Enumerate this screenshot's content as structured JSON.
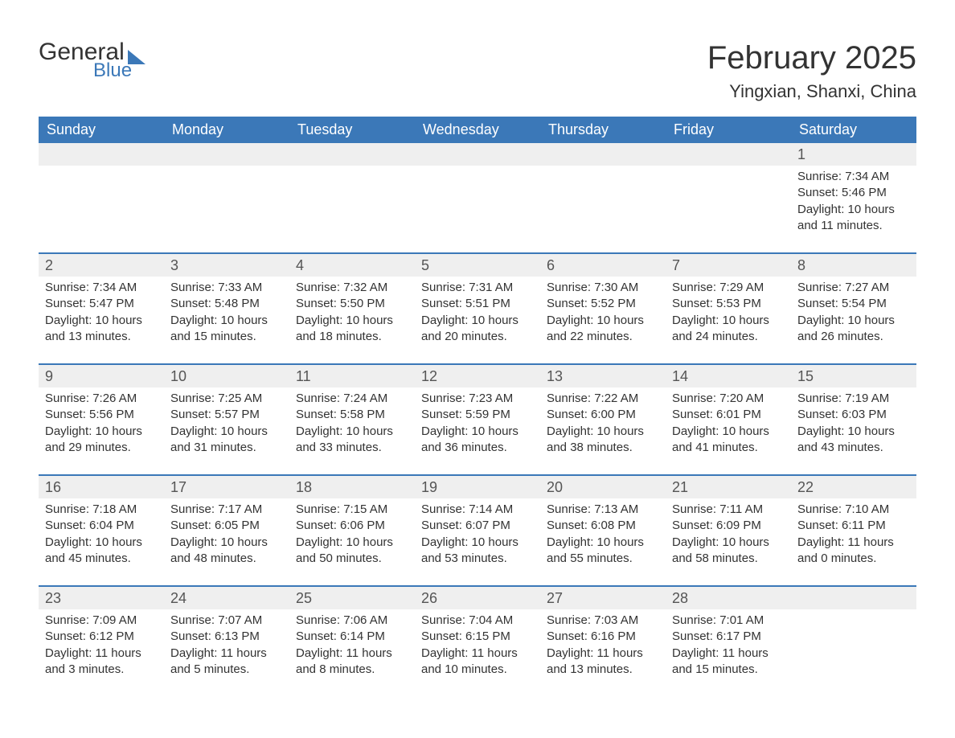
{
  "brand": {
    "text1": "General",
    "text2": "Blue"
  },
  "title": "February 2025",
  "location": "Yingxian, Shanxi, China",
  "colors": {
    "header_bg": "#3b78b8",
    "header_text": "#ffffff",
    "row_num_bg": "#efefef",
    "row_border": "#3b78b8",
    "body_text": "#333333",
    "background": "#ffffff"
  },
  "typography": {
    "title_fontsize": 40,
    "location_fontsize": 22,
    "dayheader_fontsize": 18,
    "daynum_fontsize": 18,
    "cell_fontsize": 15
  },
  "day_names": [
    "Sunday",
    "Monday",
    "Tuesday",
    "Wednesday",
    "Thursday",
    "Friday",
    "Saturday"
  ],
  "weeks": [
    [
      {
        "n": "",
        "sunrise": "",
        "sunset": "",
        "daylight1": "",
        "daylight2": ""
      },
      {
        "n": "",
        "sunrise": "",
        "sunset": "",
        "daylight1": "",
        "daylight2": ""
      },
      {
        "n": "",
        "sunrise": "",
        "sunset": "",
        "daylight1": "",
        "daylight2": ""
      },
      {
        "n": "",
        "sunrise": "",
        "sunset": "",
        "daylight1": "",
        "daylight2": ""
      },
      {
        "n": "",
        "sunrise": "",
        "sunset": "",
        "daylight1": "",
        "daylight2": ""
      },
      {
        "n": "",
        "sunrise": "",
        "sunset": "",
        "daylight1": "",
        "daylight2": ""
      },
      {
        "n": "1",
        "sunrise": "Sunrise: 7:34 AM",
        "sunset": "Sunset: 5:46 PM",
        "daylight1": "Daylight: 10 hours",
        "daylight2": "and 11 minutes."
      }
    ],
    [
      {
        "n": "2",
        "sunrise": "Sunrise: 7:34 AM",
        "sunset": "Sunset: 5:47 PM",
        "daylight1": "Daylight: 10 hours",
        "daylight2": "and 13 minutes."
      },
      {
        "n": "3",
        "sunrise": "Sunrise: 7:33 AM",
        "sunset": "Sunset: 5:48 PM",
        "daylight1": "Daylight: 10 hours",
        "daylight2": "and 15 minutes."
      },
      {
        "n": "4",
        "sunrise": "Sunrise: 7:32 AM",
        "sunset": "Sunset: 5:50 PM",
        "daylight1": "Daylight: 10 hours",
        "daylight2": "and 18 minutes."
      },
      {
        "n": "5",
        "sunrise": "Sunrise: 7:31 AM",
        "sunset": "Sunset: 5:51 PM",
        "daylight1": "Daylight: 10 hours",
        "daylight2": "and 20 minutes."
      },
      {
        "n": "6",
        "sunrise": "Sunrise: 7:30 AM",
        "sunset": "Sunset: 5:52 PM",
        "daylight1": "Daylight: 10 hours",
        "daylight2": "and 22 minutes."
      },
      {
        "n": "7",
        "sunrise": "Sunrise: 7:29 AM",
        "sunset": "Sunset: 5:53 PM",
        "daylight1": "Daylight: 10 hours",
        "daylight2": "and 24 minutes."
      },
      {
        "n": "8",
        "sunrise": "Sunrise: 7:27 AM",
        "sunset": "Sunset: 5:54 PM",
        "daylight1": "Daylight: 10 hours",
        "daylight2": "and 26 minutes."
      }
    ],
    [
      {
        "n": "9",
        "sunrise": "Sunrise: 7:26 AM",
        "sunset": "Sunset: 5:56 PM",
        "daylight1": "Daylight: 10 hours",
        "daylight2": "and 29 minutes."
      },
      {
        "n": "10",
        "sunrise": "Sunrise: 7:25 AM",
        "sunset": "Sunset: 5:57 PM",
        "daylight1": "Daylight: 10 hours",
        "daylight2": "and 31 minutes."
      },
      {
        "n": "11",
        "sunrise": "Sunrise: 7:24 AM",
        "sunset": "Sunset: 5:58 PM",
        "daylight1": "Daylight: 10 hours",
        "daylight2": "and 33 minutes."
      },
      {
        "n": "12",
        "sunrise": "Sunrise: 7:23 AM",
        "sunset": "Sunset: 5:59 PM",
        "daylight1": "Daylight: 10 hours",
        "daylight2": "and 36 minutes."
      },
      {
        "n": "13",
        "sunrise": "Sunrise: 7:22 AM",
        "sunset": "Sunset: 6:00 PM",
        "daylight1": "Daylight: 10 hours",
        "daylight2": "and 38 minutes."
      },
      {
        "n": "14",
        "sunrise": "Sunrise: 7:20 AM",
        "sunset": "Sunset: 6:01 PM",
        "daylight1": "Daylight: 10 hours",
        "daylight2": "and 41 minutes."
      },
      {
        "n": "15",
        "sunrise": "Sunrise: 7:19 AM",
        "sunset": "Sunset: 6:03 PM",
        "daylight1": "Daylight: 10 hours",
        "daylight2": "and 43 minutes."
      }
    ],
    [
      {
        "n": "16",
        "sunrise": "Sunrise: 7:18 AM",
        "sunset": "Sunset: 6:04 PM",
        "daylight1": "Daylight: 10 hours",
        "daylight2": "and 45 minutes."
      },
      {
        "n": "17",
        "sunrise": "Sunrise: 7:17 AM",
        "sunset": "Sunset: 6:05 PM",
        "daylight1": "Daylight: 10 hours",
        "daylight2": "and 48 minutes."
      },
      {
        "n": "18",
        "sunrise": "Sunrise: 7:15 AM",
        "sunset": "Sunset: 6:06 PM",
        "daylight1": "Daylight: 10 hours",
        "daylight2": "and 50 minutes."
      },
      {
        "n": "19",
        "sunrise": "Sunrise: 7:14 AM",
        "sunset": "Sunset: 6:07 PM",
        "daylight1": "Daylight: 10 hours",
        "daylight2": "and 53 minutes."
      },
      {
        "n": "20",
        "sunrise": "Sunrise: 7:13 AM",
        "sunset": "Sunset: 6:08 PM",
        "daylight1": "Daylight: 10 hours",
        "daylight2": "and 55 minutes."
      },
      {
        "n": "21",
        "sunrise": "Sunrise: 7:11 AM",
        "sunset": "Sunset: 6:09 PM",
        "daylight1": "Daylight: 10 hours",
        "daylight2": "and 58 minutes."
      },
      {
        "n": "22",
        "sunrise": "Sunrise: 7:10 AM",
        "sunset": "Sunset: 6:11 PM",
        "daylight1": "Daylight: 11 hours",
        "daylight2": "and 0 minutes."
      }
    ],
    [
      {
        "n": "23",
        "sunrise": "Sunrise: 7:09 AM",
        "sunset": "Sunset: 6:12 PM",
        "daylight1": "Daylight: 11 hours",
        "daylight2": "and 3 minutes."
      },
      {
        "n": "24",
        "sunrise": "Sunrise: 7:07 AM",
        "sunset": "Sunset: 6:13 PM",
        "daylight1": "Daylight: 11 hours",
        "daylight2": "and 5 minutes."
      },
      {
        "n": "25",
        "sunrise": "Sunrise: 7:06 AM",
        "sunset": "Sunset: 6:14 PM",
        "daylight1": "Daylight: 11 hours",
        "daylight2": "and 8 minutes."
      },
      {
        "n": "26",
        "sunrise": "Sunrise: 7:04 AM",
        "sunset": "Sunset: 6:15 PM",
        "daylight1": "Daylight: 11 hours",
        "daylight2": "and 10 minutes."
      },
      {
        "n": "27",
        "sunrise": "Sunrise: 7:03 AM",
        "sunset": "Sunset: 6:16 PM",
        "daylight1": "Daylight: 11 hours",
        "daylight2": "and 13 minutes."
      },
      {
        "n": "28",
        "sunrise": "Sunrise: 7:01 AM",
        "sunset": "Sunset: 6:17 PM",
        "daylight1": "Daylight: 11 hours",
        "daylight2": "and 15 minutes."
      },
      {
        "n": "",
        "sunrise": "",
        "sunset": "",
        "daylight1": "",
        "daylight2": ""
      }
    ]
  ]
}
